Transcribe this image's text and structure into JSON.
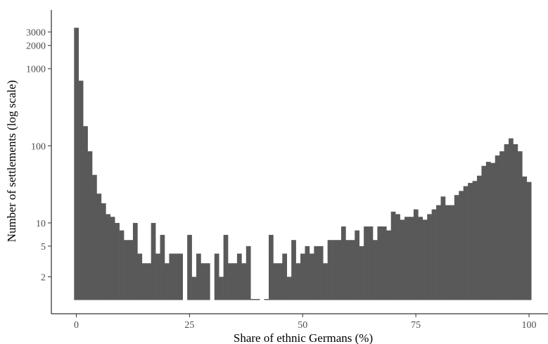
{
  "chart_data": {
    "type": "bar",
    "title": "",
    "xlabel": "Share of ethnic Germans (%)",
    "ylabel": "Number of settlements (log scale)",
    "y_scale": "log",
    "xlim": [
      -5,
      105
    ],
    "ylim": [
      1,
      5000
    ],
    "grid": false,
    "legend": "none",
    "bar_color": "#595959",
    "bin_width": 1,
    "x_ticks": [
      0,
      25,
      50,
      75,
      100
    ],
    "x_tick_labels": [
      "0",
      "25",
      "50",
      "75",
      "100"
    ],
    "y_ticks": [
      2,
      5,
      10,
      100,
      1000,
      2000,
      3000
    ],
    "y_tick_labels": [
      "2",
      "5",
      "10",
      "100",
      "1000",
      "2000",
      "3000"
    ],
    "x": [
      0,
      1,
      2,
      3,
      4,
      5,
      6,
      7,
      8,
      9,
      10,
      11,
      12,
      13,
      14,
      15,
      16,
      17,
      18,
      19,
      20,
      21,
      22,
      23,
      24,
      25,
      26,
      27,
      28,
      29,
      30,
      31,
      32,
      33,
      34,
      35,
      36,
      37,
      38,
      39,
      40,
      41,
      42,
      43,
      44,
      45,
      46,
      47,
      48,
      49,
      50,
      51,
      52,
      53,
      54,
      55,
      56,
      57,
      58,
      59,
      60,
      61,
      62,
      63,
      64,
      65,
      66,
      67,
      68,
      69,
      70,
      71,
      72,
      73,
      74,
      75,
      76,
      77,
      78,
      79,
      80,
      81,
      82,
      83,
      84,
      85,
      86,
      87,
      88,
      89,
      90,
      91,
      92,
      93,
      94,
      95,
      96,
      97,
      98,
      99,
      100
    ],
    "values": [
      3400,
      700,
      180,
      85,
      42,
      24,
      18,
      13,
      12,
      10,
      8,
      6,
      6,
      10,
      4,
      3,
      3,
      10,
      4,
      7,
      3,
      4,
      4,
      4,
      0,
      7,
      2,
      4,
      3,
      3,
      0,
      4,
      2,
      7,
      3,
      3,
      4,
      3,
      5,
      1,
      1,
      0,
      1,
      7,
      3,
      3,
      4,
      2,
      6,
      3,
      4,
      5,
      4,
      5,
      5,
      3,
      6,
      6,
      6,
      9,
      6,
      6,
      8,
      5,
      9,
      9,
      6,
      9,
      9,
      8,
      14,
      13,
      11,
      12,
      12,
      15,
      12,
      11,
      13,
      15,
      17,
      22,
      17,
      17,
      23,
      26,
      30,
      33,
      35,
      41,
      55,
      62,
      60,
      75,
      85,
      105,
      125,
      105,
      85,
      40,
      34
    ]
  }
}
